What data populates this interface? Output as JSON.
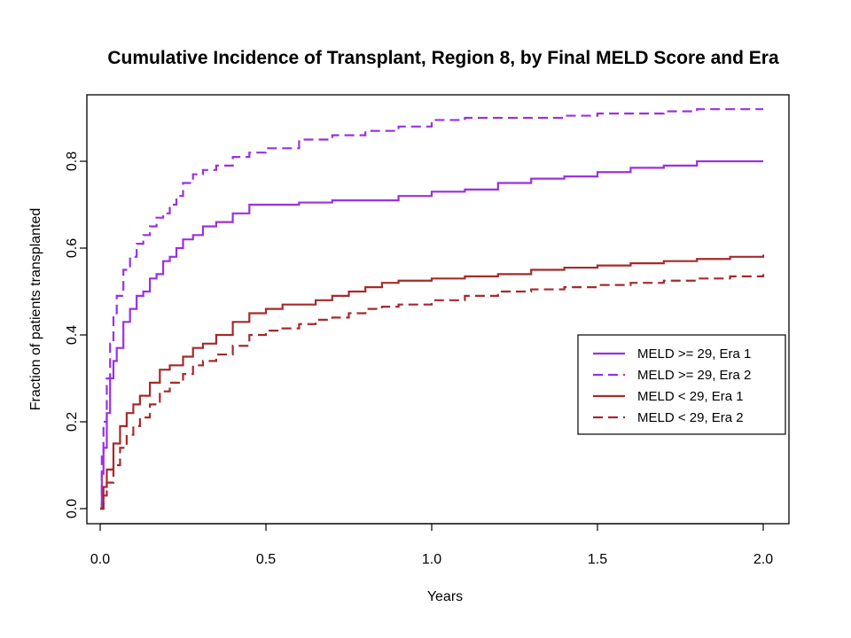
{
  "chart_data": {
    "type": "line",
    "title": "Cumulative Incidence of Transplant, Region 8, by Final MELD Score and Era",
    "xlabel": "Years",
    "ylabel": "Fraction of patients transplanted",
    "xlim": [
      0,
      2.0
    ],
    "ylim": [
      0,
      0.93
    ],
    "x_ticks": [
      "0.0",
      "0.5",
      "1.0",
      "1.5",
      "2.0"
    ],
    "y_ticks": [
      "0.0",
      "0.2",
      "0.4",
      "0.6",
      "0.8"
    ],
    "grid": false,
    "legend_position": "right",
    "series": [
      {
        "name": "MELD >= 29, Era 1",
        "color": "#9b30e0",
        "dash": "solid",
        "x": [
          0,
          0.005,
          0.01,
          0.02,
          0.03,
          0.04,
          0.05,
          0.07,
          0.09,
          0.11,
          0.13,
          0.15,
          0.17,
          0.19,
          0.21,
          0.23,
          0.25,
          0.28,
          0.31,
          0.35,
          0.4,
          0.45,
          0.5,
          0.6,
          0.7,
          0.8,
          0.9,
          1.0,
          1.1,
          1.2,
          1.3,
          1.4,
          1.5,
          1.6,
          1.7,
          1.8,
          1.9,
          2.0
        ],
        "y": [
          0,
          0.08,
          0.14,
          0.22,
          0.3,
          0.34,
          0.37,
          0.43,
          0.46,
          0.49,
          0.5,
          0.53,
          0.54,
          0.57,
          0.58,
          0.6,
          0.62,
          0.63,
          0.65,
          0.66,
          0.68,
          0.7,
          0.7,
          0.705,
          0.71,
          0.71,
          0.72,
          0.73,
          0.735,
          0.75,
          0.76,
          0.765,
          0.775,
          0.785,
          0.79,
          0.8,
          0.8,
          0.8
        ]
      },
      {
        "name": "MELD >= 29, Era 2",
        "color": "#9b30e0",
        "dash": "dashed",
        "x": [
          0,
          0.005,
          0.01,
          0.02,
          0.03,
          0.04,
          0.05,
          0.07,
          0.09,
          0.11,
          0.13,
          0.15,
          0.17,
          0.19,
          0.21,
          0.23,
          0.25,
          0.28,
          0.31,
          0.35,
          0.4,
          0.45,
          0.5,
          0.6,
          0.7,
          0.8,
          0.9,
          1.0,
          1.1,
          1.2,
          1.3,
          1.4,
          1.5,
          1.6,
          1.7,
          1.8,
          1.9,
          2.0
        ],
        "y": [
          0,
          0.12,
          0.2,
          0.3,
          0.38,
          0.45,
          0.49,
          0.55,
          0.58,
          0.61,
          0.63,
          0.65,
          0.67,
          0.68,
          0.7,
          0.72,
          0.75,
          0.77,
          0.78,
          0.79,
          0.81,
          0.82,
          0.83,
          0.85,
          0.86,
          0.87,
          0.88,
          0.895,
          0.9,
          0.9,
          0.9,
          0.905,
          0.91,
          0.91,
          0.915,
          0.92,
          0.92,
          0.92
        ]
      },
      {
        "name": "MELD < 29, Era 1",
        "color": "#a52a2a",
        "dash": "solid",
        "x": [
          0,
          0.01,
          0.02,
          0.04,
          0.06,
          0.08,
          0.1,
          0.12,
          0.15,
          0.18,
          0.21,
          0.25,
          0.28,
          0.31,
          0.35,
          0.4,
          0.45,
          0.5,
          0.55,
          0.6,
          0.65,
          0.7,
          0.75,
          0.8,
          0.85,
          0.9,
          1.0,
          1.1,
          1.2,
          1.3,
          1.4,
          1.5,
          1.6,
          1.7,
          1.8,
          1.9,
          2.0
        ],
        "y": [
          0,
          0.05,
          0.09,
          0.15,
          0.19,
          0.22,
          0.24,
          0.26,
          0.29,
          0.32,
          0.33,
          0.35,
          0.37,
          0.38,
          0.4,
          0.43,
          0.45,
          0.46,
          0.47,
          0.47,
          0.48,
          0.49,
          0.5,
          0.51,
          0.52,
          0.525,
          0.53,
          0.535,
          0.54,
          0.55,
          0.555,
          0.56,
          0.565,
          0.57,
          0.575,
          0.58,
          0.585
        ]
      },
      {
        "name": "MELD < 29, Era 2",
        "color": "#a52a2a",
        "dash": "dashed",
        "x": [
          0,
          0.01,
          0.02,
          0.04,
          0.06,
          0.08,
          0.1,
          0.12,
          0.15,
          0.18,
          0.21,
          0.25,
          0.28,
          0.31,
          0.35,
          0.4,
          0.45,
          0.5,
          0.55,
          0.6,
          0.65,
          0.7,
          0.75,
          0.8,
          0.85,
          0.9,
          1.0,
          1.1,
          1.2,
          1.3,
          1.4,
          1.5,
          1.6,
          1.7,
          1.8,
          1.9,
          2.0
        ],
        "y": [
          0,
          0.03,
          0.06,
          0.1,
          0.14,
          0.17,
          0.19,
          0.21,
          0.24,
          0.27,
          0.29,
          0.31,
          0.33,
          0.34,
          0.355,
          0.375,
          0.4,
          0.41,
          0.415,
          0.425,
          0.435,
          0.44,
          0.45,
          0.46,
          0.465,
          0.47,
          0.48,
          0.49,
          0.5,
          0.505,
          0.51,
          0.515,
          0.52,
          0.525,
          0.53,
          0.535,
          0.54
        ]
      }
    ]
  }
}
